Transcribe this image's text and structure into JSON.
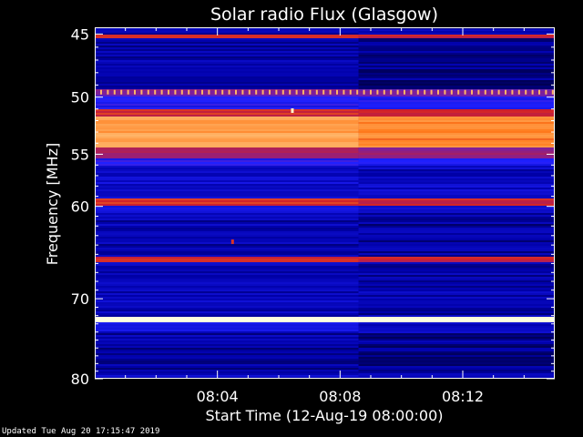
{
  "chart_data": {
    "type": "heatmap",
    "title": "Solar radio Flux (Glasgow)",
    "xlabel": "Start Time (12-Aug-19 08:00:00)",
    "ylabel": "Frequency [MHz]",
    "y_ticks": [
      "45",
      "50",
      "55",
      "60",
      "70",
      "80"
    ],
    "x_ticks": [
      "08:04",
      "08:08",
      "08:12"
    ],
    "ylim": [
      44.5,
      80
    ],
    "y_scale": "log",
    "xlim_minutes": [
      0,
      15
    ],
    "colormap": [
      "#000000",
      "#0000a8",
      "#1f20ff",
      "#7a1fa0",
      "#d0202a",
      "#ff7b1c",
      "#ffc27a",
      "#ffffe0"
    ],
    "bands": [
      {
        "y0": 45.0,
        "y1": 45.3,
        "level": 4
      },
      {
        "y0": 45.3,
        "y1": 49.2,
        "level": 1
      },
      {
        "y0": 49.2,
        "y1": 49.9,
        "level": 3
      },
      {
        "y0": 49.9,
        "y1": 51.0,
        "level": 2
      },
      {
        "y0": 51.0,
        "y1": 51.5,
        "level": 4
      },
      {
        "y0": 51.5,
        "y1": 54.3,
        "level": 5.6
      },
      {
        "y0": 54.3,
        "y1": 55.3,
        "level": 3.5
      },
      {
        "y0": 55.3,
        "y1": 56.0,
        "level": 2
      },
      {
        "y0": 56.0,
        "y1": 59.2,
        "level": 1.4
      },
      {
        "y0": 59.2,
        "y1": 59.8,
        "level": 4.2
      },
      {
        "y0": 59.8,
        "y1": 60.6,
        "level": 1.6
      },
      {
        "y0": 60.6,
        "y1": 65.2,
        "level": 1.1
      },
      {
        "y0": 65.2,
        "y1": 65.8,
        "level": 4
      },
      {
        "y0": 65.8,
        "y1": 72.0,
        "level": 1.2
      },
      {
        "y0": 72.0,
        "y1": 72.6,
        "level": 7
      },
      {
        "y0": 72.6,
        "y1": 74.0,
        "level": 1.5
      },
      {
        "y0": 74.0,
        "y1": 79.0,
        "level": 1.0
      },
      {
        "y0": 79.0,
        "y1": 80.0,
        "level": 1.3
      }
    ]
  },
  "footer": {
    "updated": "Updated Tue Aug 20 17:15:47 2019"
  }
}
